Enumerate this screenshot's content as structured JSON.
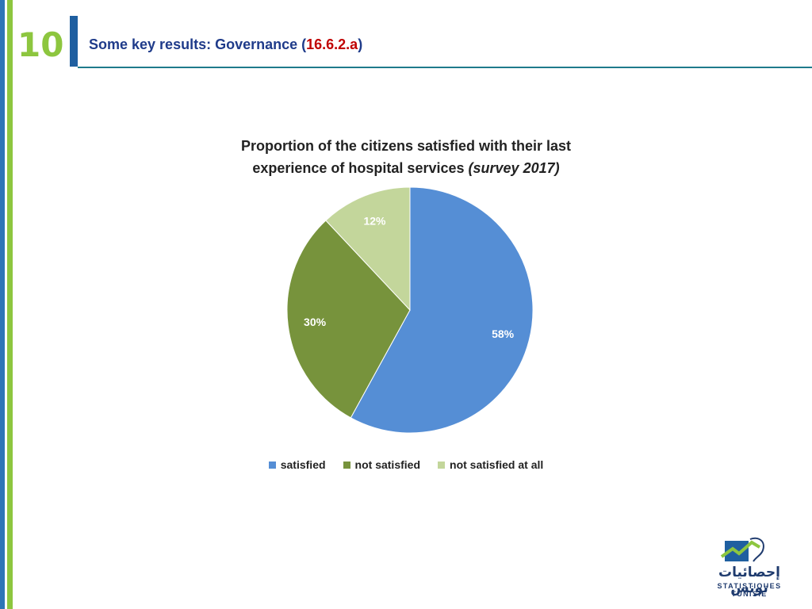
{
  "slide": {
    "number": "10",
    "title_prefix": "Some key results: Governance (",
    "title_code": "16.6.2.a",
    "title_suffix": ")"
  },
  "logo": {
    "arabic_text": "إحصائيات تونس",
    "latin_text": "STATISTIQUES TUNISIE"
  },
  "colors": {
    "satisfied": "#558ed5",
    "not_satisfied": "#77933c",
    "not_satisfied_at_all": "#c3d69b"
  },
  "chart_data": {
    "type": "pie",
    "title_line1": "Proportion of the citizens satisfied with their last",
    "title_line2": "experience of hospital services",
    "title_italic": "(survey 2017)",
    "categories": [
      "satisfied",
      "not satisfied",
      "not satisfied at all"
    ],
    "values": [
      58,
      30,
      12
    ],
    "labels": [
      "58%",
      "30%",
      "12%"
    ],
    "legend_position": "bottom"
  }
}
